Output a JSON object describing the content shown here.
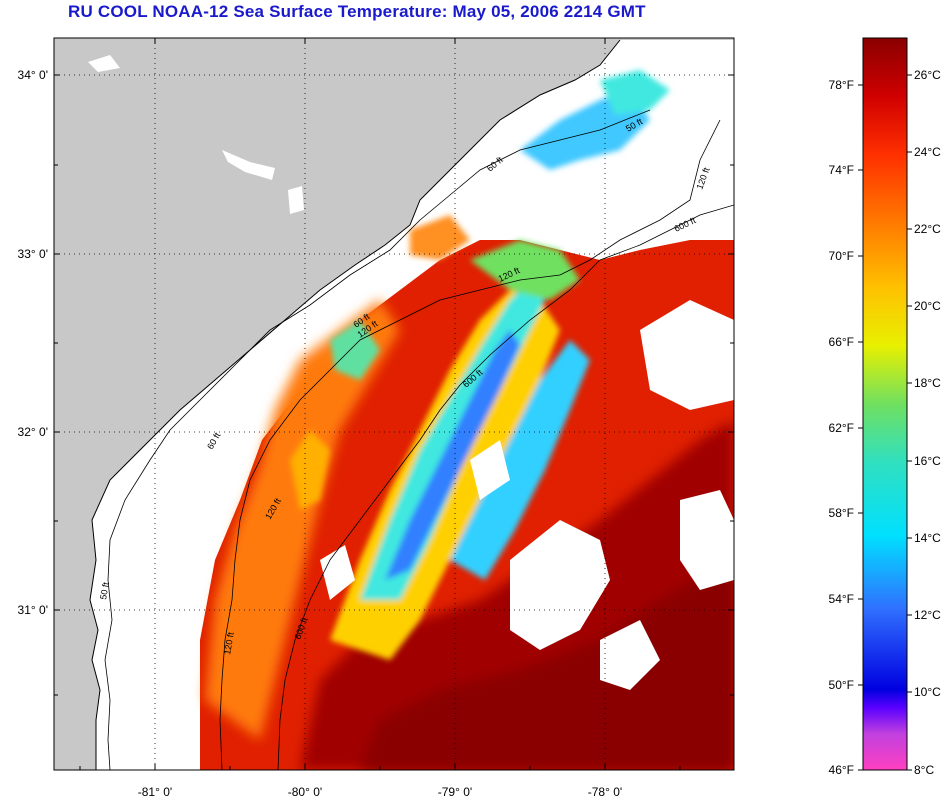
{
  "title": "RU COOL  NOAA-12  Sea Surface Temperature:  May 05, 2006 2214 GMT",
  "map": {
    "lat_labels": [
      "34° 0'",
      "33° 0'",
      "32° 0'",
      "31° 0'"
    ],
    "lon_labels": [
      "-81° 0'",
      "-80° 0'",
      "-79° 0'",
      "-78° 0'"
    ],
    "contour_labels": [
      "50 ft",
      "120 ft",
      "600 ft",
      "60 ft",
      "120 ft",
      "600 ft",
      "120 ft",
      "60 ft",
      "50 ft",
      "120 ft",
      "600 ft",
      "120 ft",
      "60 ft"
    ],
    "colors": {
      "land": "#c8c8c8",
      "cloud": "#ffffff",
      "frame": "#000000"
    }
  },
  "colorbar": {
    "fahrenheit_labels": [
      "78°F",
      "74°F",
      "70°F",
      "66°F",
      "62°F",
      "58°F",
      "54°F",
      "50°F",
      "46°F"
    ],
    "celsius_labels": [
      "26°C",
      "24°C",
      "22°C",
      "20°C",
      "18°C",
      "16°C",
      "14°C",
      "12°C",
      "10°C",
      "8°C"
    ],
    "range_c": [
      8,
      27
    ],
    "range_f": [
      46,
      80.6
    ]
  }
}
